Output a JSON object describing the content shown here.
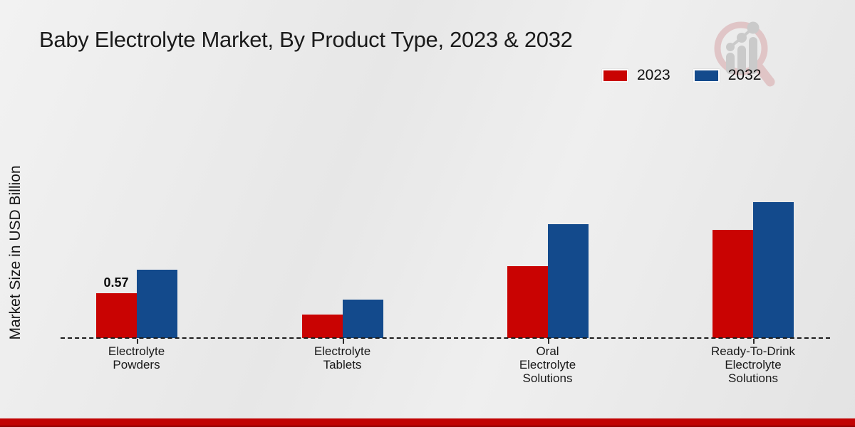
{
  "page": {
    "title": "Baby Electrolyte Market, By Product Type, 2023 & 2032"
  },
  "ylabel": "Market Size in USD Billion",
  "legend": {
    "items": [
      {
        "label": "2023",
        "color": "#c90302"
      },
      {
        "label": "2032",
        "color": "#134a8c"
      }
    ]
  },
  "logo": {
    "name": "market-research-magnifier-watermark"
  },
  "footer": {
    "color": "#c10303"
  },
  "chart_data": {
    "type": "bar",
    "title": "Baby Electrolyte Market, By Product Type, 2023 & 2032",
    "ylabel": "Market Size in USD Billion",
    "unit": "USD Billion",
    "categories": [
      [
        "Electrolyte",
        "Powders"
      ],
      [
        "Electrolyte",
        "Tablets"
      ],
      [
        "Oral",
        "Electrolyte",
        "Solutions"
      ],
      [
        "Ready-To-Drink",
        "Electrolyte",
        "Solutions"
      ]
    ],
    "series": [
      {
        "name": "2023",
        "color": "#c90302",
        "values": [
          0.57,
          0.3,
          0.91,
          1.38
        ]
      },
      {
        "name": "2032",
        "color": "#134a8c",
        "values": [
          0.87,
          0.49,
          1.45,
          1.73
        ]
      }
    ],
    "data_labels": [
      {
        "series_index": 0,
        "category_index": 0,
        "text": "0.57"
      }
    ],
    "ylim": [
      0,
      2.0
    ],
    "grid": false,
    "baseline_style": "dashed",
    "legend_position": "top-right"
  }
}
